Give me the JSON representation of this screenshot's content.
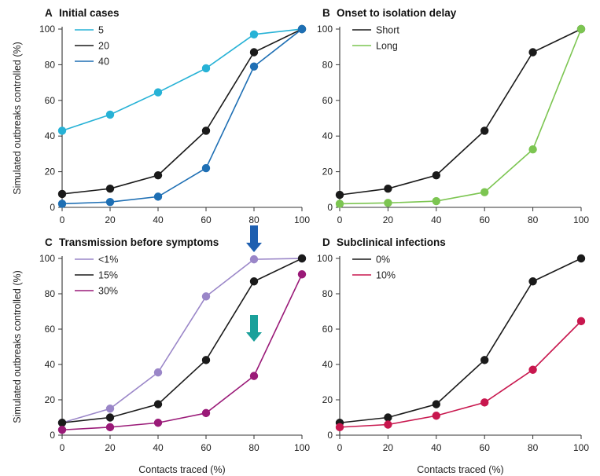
{
  "chart_data": [
    {
      "type": "line",
      "letter": "A",
      "title": "Initial cases",
      "xlabel": "",
      "ylabel": "Simulated outbreaks controlled (%)",
      "xlim": [
        0,
        100
      ],
      "ylim": [
        0,
        100
      ],
      "x": [
        0,
        20,
        40,
        60,
        80,
        100
      ],
      "xticks": [
        "0",
        "20",
        "40",
        "60",
        "80",
        "100"
      ],
      "yticks": [
        "0",
        "20",
        "40",
        "60",
        "80",
        "100"
      ],
      "legend_position": "top-left",
      "series": [
        {
          "name": "5",
          "color": "#27b2d6",
          "values": [
            43,
            52,
            64.5,
            78,
            97,
            100
          ]
        },
        {
          "name": "20",
          "color": "#1a1a1a",
          "values": [
            7.5,
            10.5,
            18,
            43,
            87,
            100
          ]
        },
        {
          "name": "40",
          "color": "#1e6fb4",
          "values": [
            2,
            3,
            6,
            22,
            79,
            100
          ]
        }
      ]
    },
    {
      "type": "line",
      "letter": "B",
      "title": "Onset to isolation delay",
      "xlabel": "",
      "ylabel": "",
      "xlim": [
        0,
        100
      ],
      "ylim": [
        0,
        100
      ],
      "x": [
        0,
        20,
        40,
        60,
        80,
        100
      ],
      "xticks": [
        "0",
        "20",
        "40",
        "60",
        "80",
        "100"
      ],
      "yticks": [
        "0",
        "20",
        "40",
        "60",
        "80",
        "100"
      ],
      "legend_position": "top-left",
      "series": [
        {
          "name": "Short",
          "color": "#1a1a1a",
          "values": [
            7,
            10.5,
            18,
            43,
            87,
            100
          ]
        },
        {
          "name": "Long",
          "color": "#7cc551",
          "values": [
            2,
            2.5,
            3.5,
            8.5,
            32.5,
            100
          ]
        }
      ]
    },
    {
      "type": "line",
      "letter": "C",
      "title": "Transmission before symptoms",
      "xlabel": "Contacts traced (%)",
      "ylabel": "Simulated outbreaks controlled (%)",
      "xlim": [
        0,
        100
      ],
      "ylim": [
        0,
        100
      ],
      "x": [
        0,
        20,
        40,
        60,
        80,
        100
      ],
      "xticks": [
        "0",
        "20",
        "40",
        "60",
        "80",
        "100"
      ],
      "yticks": [
        "0",
        "20",
        "40",
        "60",
        "80",
        "100"
      ],
      "legend_position": "top-left",
      "series": [
        {
          "name": "<1%",
          "color": "#9a86c8",
          "values": [
            7,
            15,
            35.5,
            78.5,
            99.5,
            100
          ]
        },
        {
          "name": "15%",
          "color": "#1a1a1a",
          "values": [
            7,
            10,
            17.5,
            42.5,
            87,
            100
          ]
        },
        {
          "name": "30%",
          "color": "#9a1a78",
          "values": [
            3,
            4.5,
            7,
            12.5,
            33.5,
            91
          ]
        }
      ],
      "annotations": [
        {
          "kind": "arrow-down",
          "color": "#1e5fb0",
          "x": 80
        },
        {
          "kind": "arrow-down",
          "color": "#1aa09a",
          "x": 80
        }
      ]
    },
    {
      "type": "line",
      "letter": "D",
      "title": "Subclinical infections",
      "xlabel": "Contacts traced (%)",
      "ylabel": "",
      "xlim": [
        0,
        100
      ],
      "ylim": [
        0,
        100
      ],
      "x": [
        0,
        20,
        40,
        60,
        80,
        100
      ],
      "xticks": [
        "0",
        "20",
        "40",
        "60",
        "80",
        "100"
      ],
      "yticks": [
        "0",
        "20",
        "40",
        "60",
        "80",
        "100"
      ],
      "legend_position": "top-left",
      "series": [
        {
          "name": "0%",
          "color": "#1a1a1a",
          "values": [
            7,
            10,
            17.5,
            42.5,
            87,
            100
          ]
        },
        {
          "name": "10%",
          "color": "#c8174e",
          "values": [
            4.5,
            6,
            11,
            18.5,
            37,
            64.5
          ]
        }
      ]
    }
  ]
}
